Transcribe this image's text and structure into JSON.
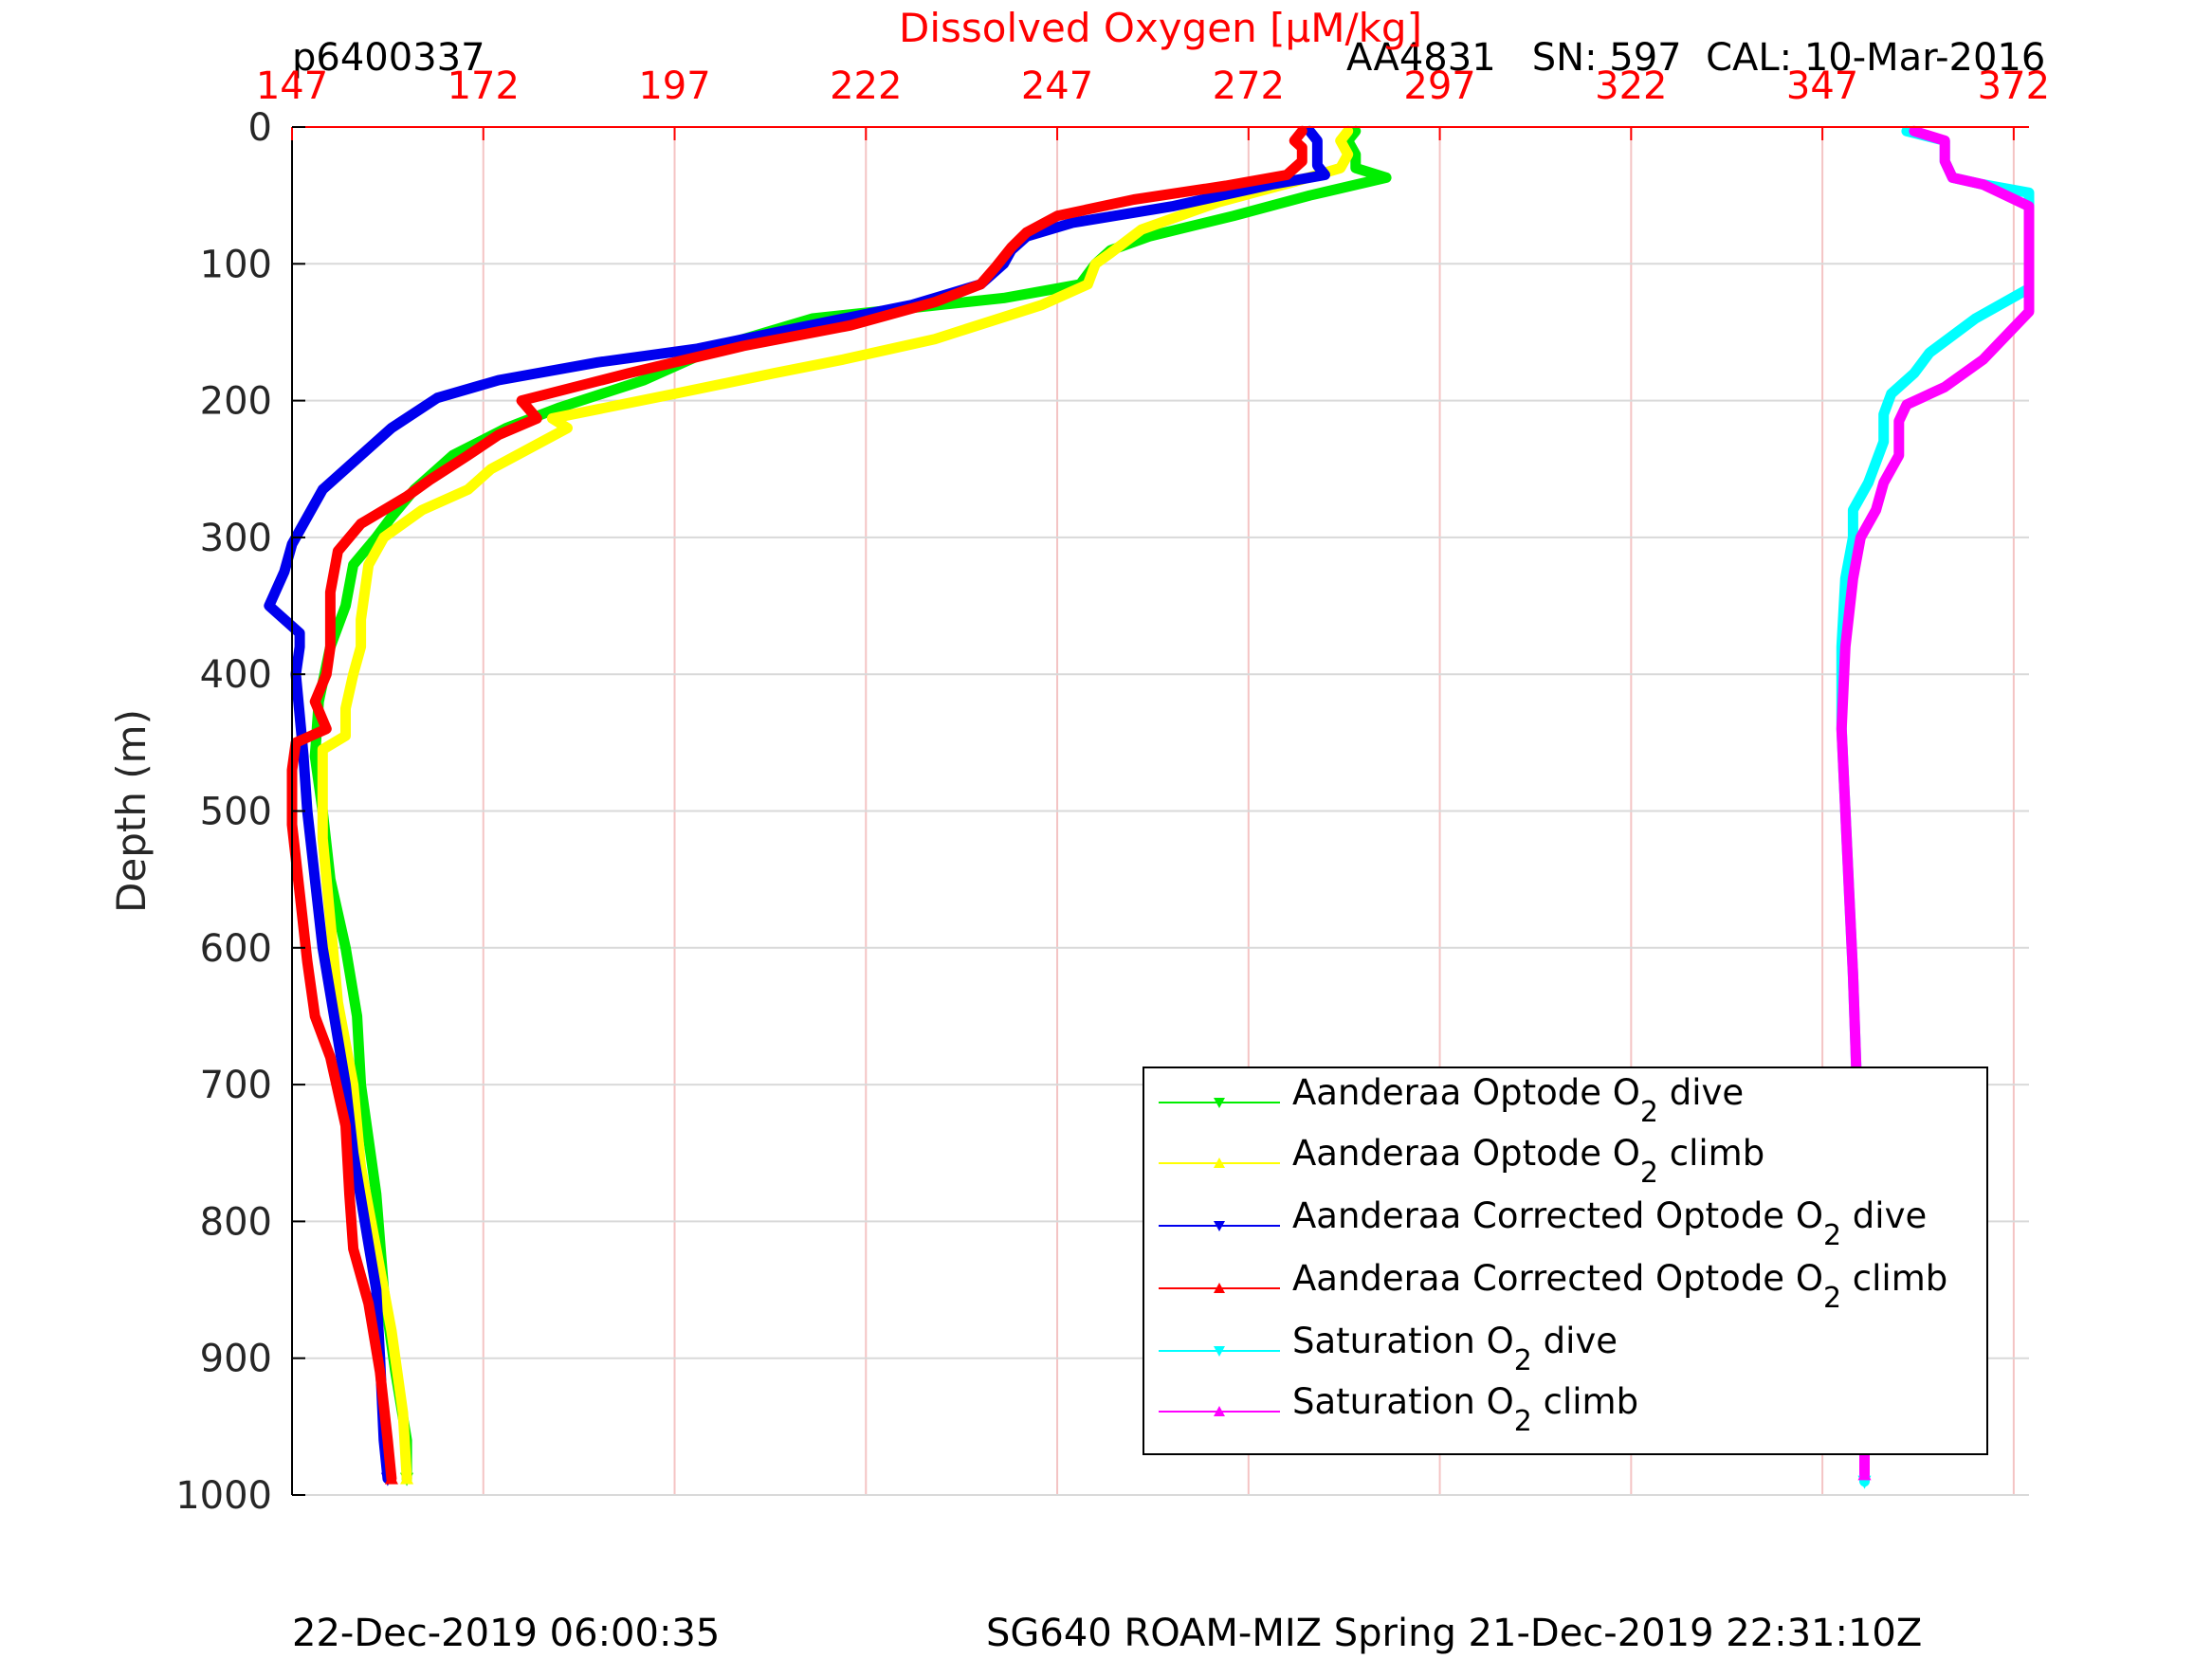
{
  "header": {
    "profile_id": "p6400337",
    "sensor_info": "AA4831   SN: 597  CAL: 10-Mar-2016"
  },
  "footer": {
    "left": "22-Dec-2019 06:00:35",
    "right": "SG640 ROAM-MIZ Spring 21-Dec-2019 22:31:10Z"
  },
  "colors": {
    "axis_top": "#ff0000",
    "grid_x": "#f4c4c4",
    "grid_y": "#d9d9d9",
    "dive_green": "#00ee00",
    "climb_yellow": "#ffff00",
    "dive_blue": "#0000ee",
    "climb_red": "#ff0000",
    "dive_cyan": "#00ffff",
    "climb_magenta": "#ff00ff"
  },
  "chart_data": {
    "type": "line",
    "title": "Dissolved Oxygen [μM/kg]",
    "xlabel": "Dissolved Oxygen [μM/kg]",
    "ylabel": "Depth (m)",
    "xlim": [
      147,
      374
    ],
    "ylim": [
      0,
      1000
    ],
    "y_reversed": true,
    "x_axis_position": "top",
    "x_ticks": [
      147,
      172,
      197,
      222,
      247,
      272,
      297,
      322,
      347,
      372
    ],
    "y_ticks": [
      0,
      100,
      200,
      300,
      400,
      500,
      600,
      700,
      800,
      900,
      1000
    ],
    "grid": true,
    "legend_position": "bottom-right",
    "series": [
      {
        "name": "Aanderaa Optode O2 dive",
        "color": "#00ee00",
        "marker": "down-triangle",
        "points": [
          [
            286,
            3
          ],
          [
            285,
            10
          ],
          [
            286,
            20
          ],
          [
            286,
            30
          ],
          [
            290,
            37
          ],
          [
            280,
            50
          ],
          [
            270,
            65
          ],
          [
            259,
            80
          ],
          [
            254,
            90
          ],
          [
            252,
            100
          ],
          [
            250,
            115
          ],
          [
            240,
            125
          ],
          [
            215,
            140
          ],
          [
            203,
            160
          ],
          [
            193,
            185
          ],
          [
            182,
            205
          ],
          [
            175,
            220
          ],
          [
            168,
            240
          ],
          [
            163,
            265
          ],
          [
            160,
            285
          ],
          [
            158,
            300
          ],
          [
            155,
            320
          ],
          [
            154,
            350
          ],
          [
            152,
            380
          ],
          [
            150.5,
            420
          ],
          [
            150,
            460
          ],
          [
            151,
            500
          ],
          [
            152,
            550
          ],
          [
            154,
            600
          ],
          [
            155.5,
            650
          ],
          [
            156,
            700
          ],
          [
            158,
            780
          ],
          [
            159,
            850
          ],
          [
            160.5,
            910
          ],
          [
            162,
            960
          ],
          [
            162,
            988
          ]
        ]
      },
      {
        "name": "Aanderaa Optode O2 climb",
        "color": "#ffff00",
        "marker": "up-triangle",
        "points": [
          [
            285,
            3
          ],
          [
            284,
            10
          ],
          [
            285,
            20
          ],
          [
            284,
            30
          ],
          [
            278,
            40
          ],
          [
            268,
            55
          ],
          [
            258,
            75
          ],
          [
            254,
            92
          ],
          [
            252,
            100
          ],
          [
            251,
            115
          ],
          [
            245,
            130
          ],
          [
            231,
            155
          ],
          [
            219,
            170
          ],
          [
            210,
            180
          ],
          [
            197,
            195
          ],
          [
            181,
            213
          ],
          [
            183,
            220
          ],
          [
            178,
            235
          ],
          [
            173,
            250
          ],
          [
            170,
            265
          ],
          [
            164,
            280
          ],
          [
            159,
            300
          ],
          [
            157,
            320
          ],
          [
            156,
            360
          ],
          [
            156,
            380
          ],
          [
            155,
            400
          ],
          [
            154,
            425
          ],
          [
            154,
            445
          ],
          [
            151,
            455
          ],
          [
            151,
            520
          ],
          [
            152,
            580
          ],
          [
            153,
            640
          ],
          [
            155,
            700
          ],
          [
            156,
            760
          ],
          [
            158,
            820
          ],
          [
            160,
            880
          ],
          [
            161.5,
            940
          ],
          [
            162,
            988
          ]
        ]
      },
      {
        "name": "Aanderaa Corrected Optode O2 dive",
        "color": "#0000ee",
        "marker": "down-triangle",
        "points": [
          [
            280,
            3
          ],
          [
            281,
            10
          ],
          [
            281,
            20
          ],
          [
            281,
            28
          ],
          [
            282,
            35
          ],
          [
            275,
            42
          ],
          [
            262,
            58
          ],
          [
            249,
            70
          ],
          [
            243,
            80
          ],
          [
            241,
            90
          ],
          [
            240,
            100
          ],
          [
            237,
            115
          ],
          [
            228,
            130
          ],
          [
            212,
            148
          ],
          [
            200,
            162
          ],
          [
            187,
            172
          ],
          [
            174,
            185
          ],
          [
            166,
            198
          ],
          [
            160,
            220
          ],
          [
            155,
            245
          ],
          [
            151,
            265
          ],
          [
            149,
            285
          ],
          [
            147,
            305
          ],
          [
            146,
            325
          ],
          [
            144,
            350
          ],
          [
            148,
            370
          ],
          [
            148,
            380
          ],
          [
            147.5,
            400
          ],
          [
            148,
            430
          ],
          [
            148.5,
            460
          ],
          [
            149,
            500
          ],
          [
            150,
            550
          ],
          [
            151,
            600
          ],
          [
            152.5,
            650
          ],
          [
            154,
            700
          ],
          [
            155,
            750
          ],
          [
            156.5,
            800
          ],
          [
            158,
            850
          ],
          [
            158.5,
            900
          ],
          [
            159,
            960
          ],
          [
            159.5,
            988
          ]
        ]
      },
      {
        "name": "Aanderaa Corrected Optode O2 climb",
        "color": "#ff0000",
        "marker": "up-triangle",
        "points": [
          [
            279,
            3
          ],
          [
            278,
            10
          ],
          [
            279,
            15
          ],
          [
            279,
            25
          ],
          [
            277,
            35
          ],
          [
            269,
            43
          ],
          [
            257,
            53
          ],
          [
            247,
            65
          ],
          [
            243,
            77
          ],
          [
            241,
            88
          ],
          [
            239,
            102
          ],
          [
            237,
            115
          ],
          [
            231,
            128
          ],
          [
            220,
            145
          ],
          [
            206,
            160
          ],
          [
            191,
            180
          ],
          [
            177,
            200
          ],
          [
            179,
            213
          ],
          [
            174,
            225
          ],
          [
            170,
            240
          ],
          [
            165,
            258
          ],
          [
            162,
            270
          ],
          [
            156,
            290
          ],
          [
            153,
            310
          ],
          [
            152,
            340
          ],
          [
            152,
            380
          ],
          [
            151.5,
            400
          ],
          [
            150,
            420
          ],
          [
            151.5,
            440
          ],
          [
            147.5,
            450
          ],
          [
            147,
            470
          ],
          [
            147,
            510
          ],
          [
            148,
            560
          ],
          [
            149,
            610
          ],
          [
            150,
            650
          ],
          [
            152,
            680
          ],
          [
            154,
            730
          ],
          [
            154.5,
            780
          ],
          [
            155,
            820
          ],
          [
            157,
            860
          ],
          [
            158.5,
            910
          ],
          [
            159.5,
            960
          ],
          [
            160,
            988
          ]
        ]
      },
      {
        "name": "Saturation O2 dive",
        "color": "#00ffff",
        "marker": "down-triangle",
        "points": [
          [
            358,
            3
          ],
          [
            363,
            10
          ],
          [
            363,
            25
          ],
          [
            364,
            37
          ],
          [
            368,
            42
          ],
          [
            374,
            48
          ],
          [
            374,
            118
          ],
          [
            367,
            140
          ],
          [
            361,
            165
          ],
          [
            359,
            180
          ],
          [
            356,
            195
          ],
          [
            355,
            210
          ],
          [
            355,
            230
          ],
          [
            353,
            260
          ],
          [
            351,
            280
          ],
          [
            351,
            300
          ],
          [
            350,
            330
          ],
          [
            349.5,
            380
          ],
          [
            349.5,
            440
          ],
          [
            350,
            500
          ],
          [
            350.5,
            560
          ],
          [
            351,
            620
          ],
          [
            351.5,
            700
          ],
          [
            352,
            800
          ],
          [
            352.5,
            900
          ],
          [
            352.5,
            990
          ]
        ]
      },
      {
        "name": "Saturation O2 climb",
        "color": "#ff00ff",
        "marker": "up-triangle",
        "points": [
          [
            359,
            3
          ],
          [
            363,
            10
          ],
          [
            363,
            25
          ],
          [
            364,
            37
          ],
          [
            368,
            42
          ],
          [
            374,
            58
          ],
          [
            374,
            135
          ],
          [
            368,
            170
          ],
          [
            363,
            190
          ],
          [
            358,
            203
          ],
          [
            357,
            215
          ],
          [
            357,
            240
          ],
          [
            355,
            260
          ],
          [
            354,
            280
          ],
          [
            352,
            300
          ],
          [
            351,
            330
          ],
          [
            350,
            380
          ],
          [
            349.5,
            440
          ],
          [
            350,
            500
          ],
          [
            350.5,
            560
          ],
          [
            351,
            620
          ],
          [
            351.5,
            700
          ],
          [
            352,
            800
          ],
          [
            352.5,
            900
          ],
          [
            352.5,
            985
          ]
        ]
      }
    ],
    "legend": [
      {
        "prefix": "Aanderaa Optode O",
        "sub": "2",
        "suffix": " dive"
      },
      {
        "prefix": "Aanderaa Optode O",
        "sub": "2",
        "suffix": " climb"
      },
      {
        "prefix": "Aanderaa Corrected Optode O",
        "sub": "2",
        "suffix": " dive"
      },
      {
        "prefix": "Aanderaa Corrected Optode O",
        "sub": "2",
        "suffix": " climb"
      },
      {
        "prefix": "Saturation O",
        "sub": "2",
        "suffix": " dive"
      },
      {
        "prefix": "Saturation O",
        "sub": "2",
        "suffix": " climb"
      }
    ]
  }
}
